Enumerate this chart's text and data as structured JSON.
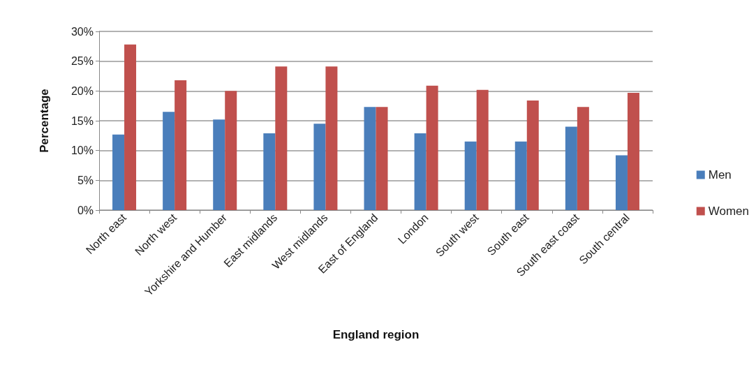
{
  "chart_data": {
    "type": "bar",
    "xlabel": "England region",
    "ylabel": "Percentage",
    "categories": [
      "North east",
      "North west",
      "Yorkshire and Humber",
      "East midlands",
      "West midlands",
      "East of England",
      "London",
      "South west",
      "South east",
      "South east coast",
      "South central"
    ],
    "series": [
      {
        "name": "Men",
        "color": "#4a7ebb",
        "values": [
          12.7,
          16.5,
          15.2,
          12.9,
          14.5,
          17.3,
          12.9,
          11.5,
          11.5,
          14.0,
          9.2
        ]
      },
      {
        "name": "Women",
        "color": "#c0504d",
        "values": [
          27.8,
          21.8,
          20.0,
          24.1,
          24.1,
          17.3,
          20.9,
          20.2,
          18.4,
          17.3,
          19.7
        ]
      }
    ],
    "ylim": [
      0,
      30
    ],
    "yticks": [
      {
        "value": 0,
        "label": "0%"
      },
      {
        "value": 5,
        "label": "5%"
      },
      {
        "value": 10,
        "label": "10%"
      },
      {
        "value": 15,
        "label": "15%"
      },
      {
        "value": 20,
        "label": "20%"
      },
      {
        "value": 25,
        "label": "25%"
      },
      {
        "value": 30,
        "label": "30%"
      }
    ],
    "grid": "y",
    "legend": "right"
  }
}
